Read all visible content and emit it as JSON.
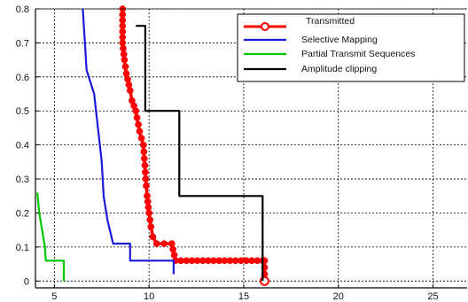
{
  "chart_data": {
    "type": "line",
    "title": "",
    "xlabel": "",
    "ylabel": "",
    "xlim": [
      4,
      26.8
    ],
    "ylim": [
      -0.02,
      0.8
    ],
    "xticks": [
      5,
      10,
      15,
      20,
      25
    ],
    "xtick_labels": [
      "5",
      "10",
      "15",
      "20",
      "25"
    ],
    "yticks": [
      0,
      0.1,
      0.2,
      0.3,
      0.4,
      0.5,
      0.6,
      0.7,
      0.8
    ],
    "ytick_labels": [
      "0",
      "0.1",
      "0.2",
      "0.3",
      "0.4",
      "0.5",
      "0.6",
      "0.7",
      "0.8"
    ],
    "grid": true,
    "legend_position": "top-right",
    "series": [
      {
        "name": "Transmitted",
        "color": "#ff0000",
        "marker": "circle",
        "x": [
          8.6,
          8.6,
          8.7,
          8.8,
          9.0,
          9.1,
          9.3,
          9.5,
          9.7,
          9.75,
          9.8,
          9.85,
          9.9,
          10.0,
          10.1,
          10.2,
          10.4,
          11.2,
          11.4,
          16.0,
          16.1,
          16.1
        ],
        "y": [
          0.8,
          0.7,
          0.65,
          0.61,
          0.56,
          0.53,
          0.5,
          0.44,
          0.4,
          0.36,
          0.32,
          0.28,
          0.25,
          0.2,
          0.16,
          0.13,
          0.11,
          0.11,
          0.06,
          0.06,
          0.06,
          0.0
        ]
      },
      {
        "name": "Selective Mapping",
        "color": "#1a1adb",
        "x": [
          6.5,
          6.7,
          7.1,
          7.3,
          7.5,
          7.6,
          7.8,
          8.1,
          9.0,
          9.0,
          11.3,
          11.3
        ],
        "y": [
          0.8,
          0.62,
          0.55,
          0.45,
          0.35,
          0.25,
          0.18,
          0.11,
          0.11,
          0.06,
          0.06,
          0.02
        ]
      },
      {
        "name": "Partial Transmit Sequences",
        "color": "#00c800",
        "x": [
          4.1,
          4.2,
          4.35,
          4.5,
          4.55,
          5.5,
          5.5
        ],
        "y": [
          0.26,
          0.2,
          0.15,
          0.1,
          0.06,
          0.06,
          0.0
        ]
      },
      {
        "name": "Amplitude clipping",
        "color": "#000000",
        "x": [
          9.3,
          9.8,
          9.8,
          10.4,
          10.4,
          11.6,
          11.6,
          16.0,
          16.0
        ],
        "y": [
          0.75,
          0.75,
          0.5,
          0.5,
          0.5,
          0.5,
          0.25,
          0.25,
          0.0
        ]
      }
    ]
  }
}
